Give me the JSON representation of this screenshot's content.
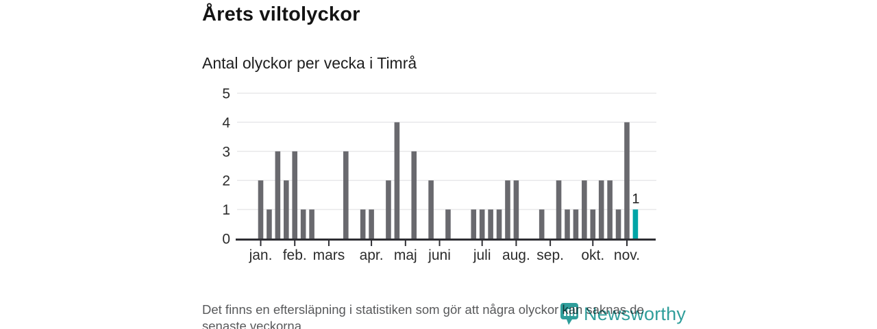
{
  "header": {
    "title": "Årets viltolyckor",
    "subtitle": "Antal olyckor per vecka i Timrå"
  },
  "chart_data": {
    "type": "bar",
    "title": "Årets viltolyckor",
    "subtitle": "Antal olyckor per vecka i Timrå",
    "x_unit": "week",
    "values": [
      2,
      1,
      3,
      2,
      3,
      1,
      1,
      0,
      0,
      0,
      3,
      0,
      1,
      1,
      0,
      2,
      4,
      0,
      3,
      0,
      2,
      0,
      1,
      0,
      0,
      1,
      1,
      1,
      1,
      2,
      2,
      0,
      0,
      1,
      0,
      2,
      1,
      1,
      2,
      1,
      2,
      2,
      1,
      4,
      1
    ],
    "month_ticks": [
      {
        "label": "jan.",
        "week_index": 0
      },
      {
        "label": "feb.",
        "week_index": 4
      },
      {
        "label": "mars",
        "week_index": 8
      },
      {
        "label": "apr.",
        "week_index": 13
      },
      {
        "label": "maj",
        "week_index": 17
      },
      {
        "label": "juni",
        "week_index": 21
      },
      {
        "label": "juli",
        "week_index": 26
      },
      {
        "label": "aug.",
        "week_index": 30
      },
      {
        "label": "sep.",
        "week_index": 34
      },
      {
        "label": "okt.",
        "week_index": 39
      },
      {
        "label": "nov.",
        "week_index": 43
      }
    ],
    "yticks": [
      0,
      1,
      2,
      3,
      4,
      5
    ],
    "ylim": [
      0,
      5
    ],
    "grid": true,
    "legend": "none",
    "highlight": {
      "index": 44,
      "label": "1"
    },
    "colors": {
      "bar": "#69696e",
      "highlight_bar": "#00a5a7",
      "axis": "#2e2e33",
      "grid": "#e8e8ea",
      "tick_label": "#2b2b2b",
      "data_label": "#1a1a1a"
    }
  },
  "footnote": {
    "line1": "Det finns en eftersläpning i statistiken som gör att några olyckor kan saknas de",
    "line2": "senaste veckorna."
  },
  "logo": {
    "text": "Newsworthy",
    "color": "#2f9e9b",
    "icon": "newsworthy-pin-icon"
  }
}
